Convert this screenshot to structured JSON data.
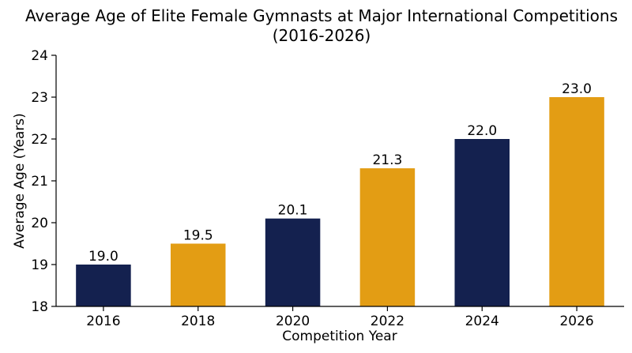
{
  "chart_data": {
    "type": "bar",
    "title_line1": "Average Age of Elite Female Gymnasts at Major International Competitions",
    "title_line2": "(2016-2026)",
    "xlabel": "Competition Year",
    "ylabel": "Average Age (Years)",
    "categories": [
      "2016",
      "2018",
      "2020",
      "2022",
      "2024",
      "2026"
    ],
    "values": [
      19.0,
      19.5,
      20.1,
      21.3,
      22.0,
      23.0
    ],
    "value_labels": [
      "19.0",
      "19.5",
      "20.1",
      "21.3",
      "22.0",
      "23.0"
    ],
    "ylim": [
      18,
      24
    ],
    "yticks": [
      18,
      19,
      20,
      21,
      22,
      23,
      24
    ],
    "bar_colors": [
      "#14214f",
      "#e39d14",
      "#14214f",
      "#e39d14",
      "#14214f",
      "#e39d14"
    ],
    "grid": false,
    "legend": "none"
  }
}
